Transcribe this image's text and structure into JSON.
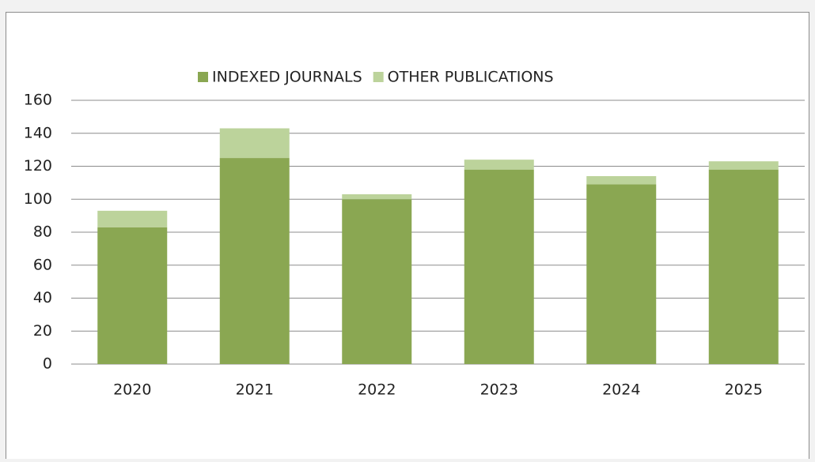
{
  "chart_data": {
    "type": "stacked_bar",
    "categories": [
      "2020",
      "2021",
      "2022",
      "2023",
      "2024",
      "2025"
    ],
    "series": [
      {
        "name": "INDEXED JOURNALS",
        "color": "#8aa752",
        "values": [
          83,
          125,
          100,
          118,
          109,
          118
        ]
      },
      {
        "name": "OTHER PUBLICATIONS",
        "color": "#bcd39b",
        "values": [
          10,
          18,
          3,
          6,
          5,
          5
        ]
      }
    ],
    "ylim": [
      0,
      160
    ],
    "yticks": [
      0,
      20,
      40,
      60,
      80,
      100,
      120,
      140,
      160
    ],
    "grid": true,
    "legend": "top"
  }
}
